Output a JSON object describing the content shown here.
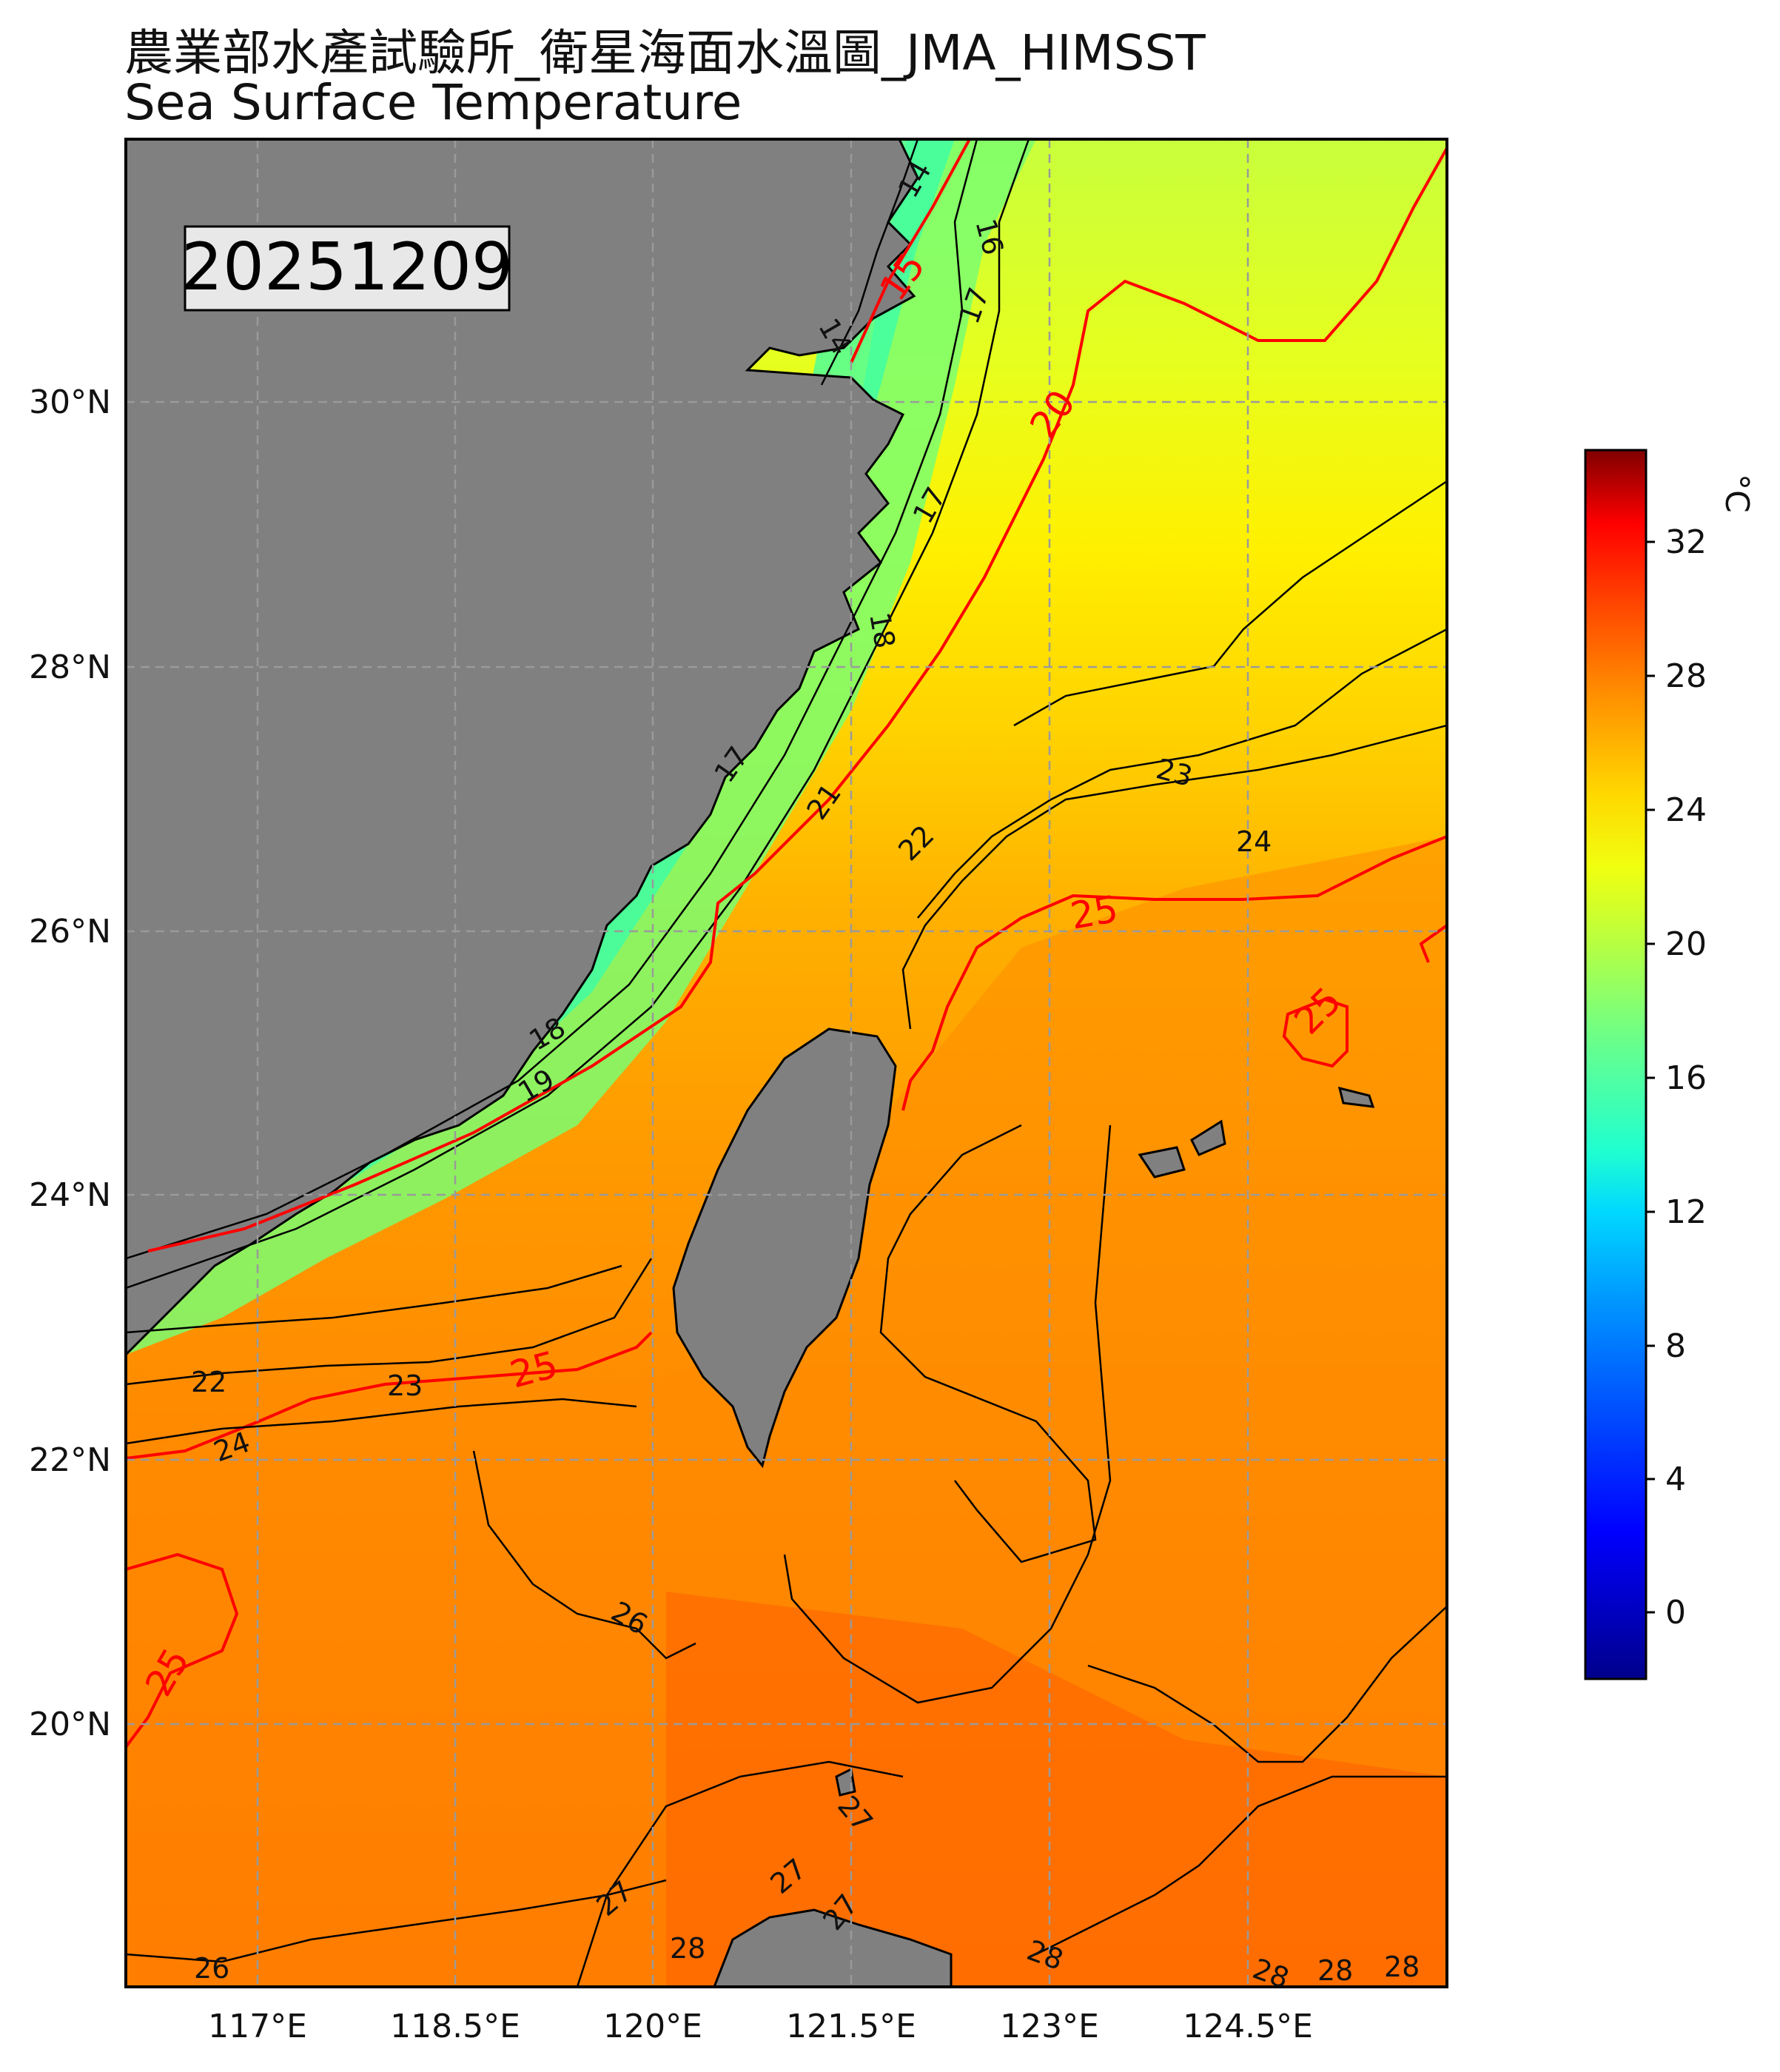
{
  "title": "農業部水產試驗所_衛星海面水溫圖_JMA_HIMSST",
  "subtitle": "Sea Surface Temperature",
  "date_label": "20251209",
  "colors": {
    "land": "#808080",
    "contour": "#000000",
    "highlight_contour": "#ff0000",
    "grid": "#9a9a9a"
  },
  "map": {
    "lon_range": [
      116.0,
      126.0
    ],
    "lat_range": [
      18.0,
      32.0
    ],
    "lat_ticks": [
      "30°N",
      "28°N",
      "26°N",
      "24°N",
      "22°N",
      "20°N"
    ],
    "lon_ticks": [
      "117°E",
      "118.5°E",
      "120°E",
      "121.5°E",
      "123°E",
      "124.5°E"
    ],
    "grid": "dashed"
  },
  "contour_labels": {
    "black": [
      "14",
      "16",
      "14",
      "17",
      "17",
      "18",
      "17",
      "18",
      "19",
      "21",
      "22",
      "23",
      "24",
      "22",
      "23",
      "24",
      "26",
      "27",
      "27",
      "27",
      "27",
      "28",
      "28",
      "28",
      "28",
      "28",
      "26"
    ],
    "red": [
      "15",
      "20",
      "25",
      "25",
      "25",
      "25"
    ]
  },
  "colorbar": {
    "unit": "°C",
    "min": -2,
    "max": 35,
    "ticks": [
      "0",
      "4",
      "8",
      "12",
      "16",
      "20",
      "24",
      "28",
      "32"
    ]
  }
}
